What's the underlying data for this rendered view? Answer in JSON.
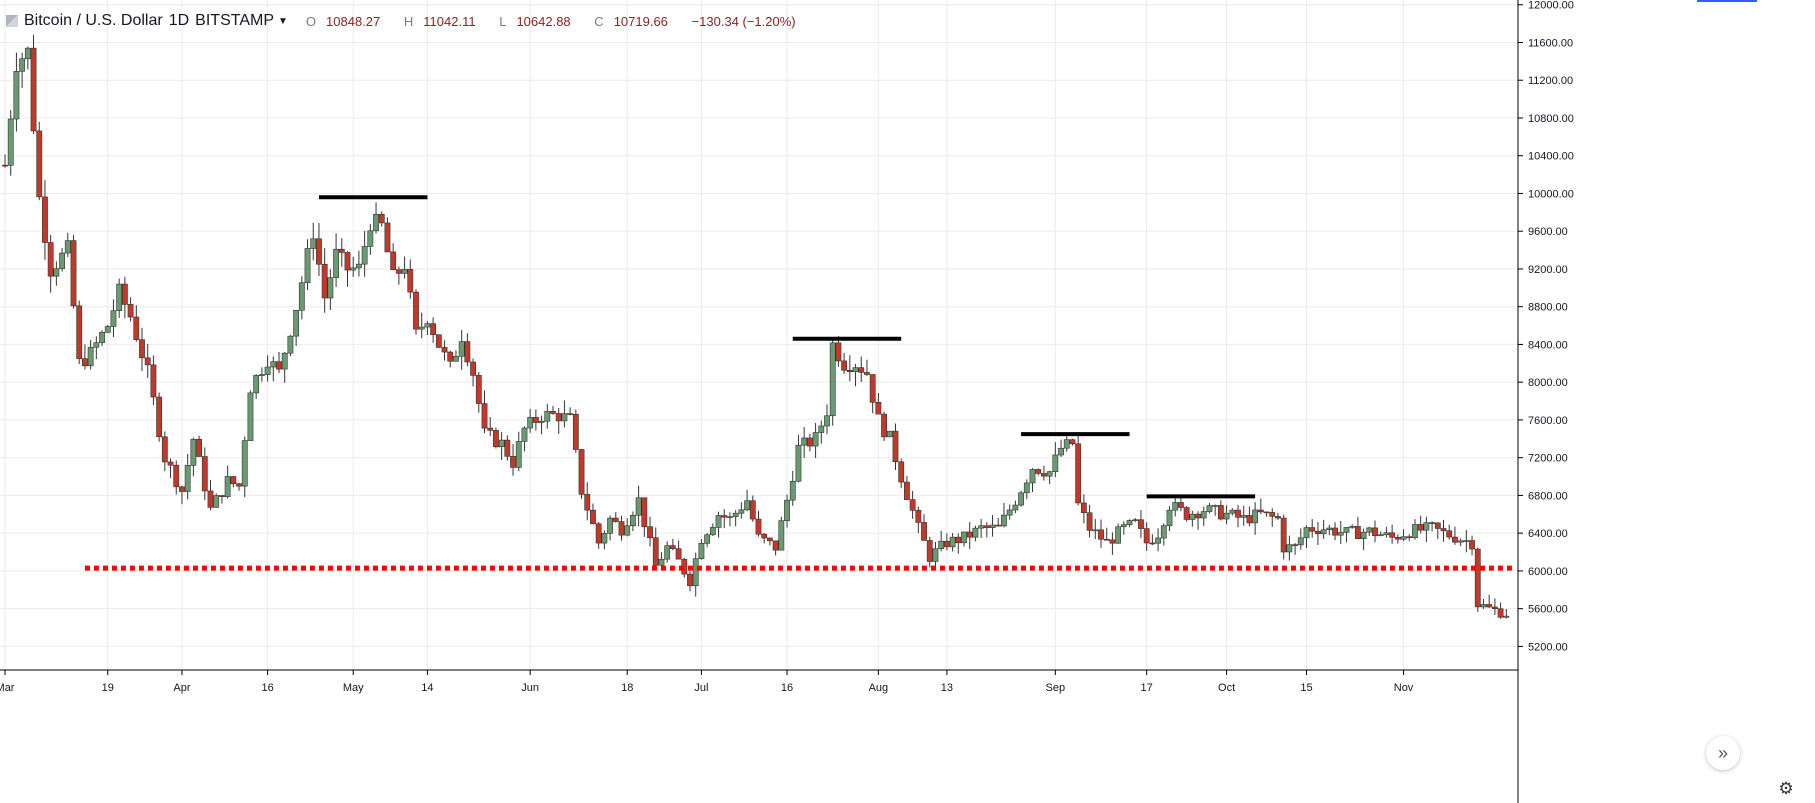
{
  "header": {
    "symbol": "Bitcoin / U.S. Dollar",
    "interval": "1D",
    "exchange": "BITSTAMP",
    "ohlc": {
      "o_label": "O",
      "o": "10848.27",
      "h_label": "H",
      "h": "11042.11",
      "l_label": "L",
      "l": "10642.88",
      "c_label": "C",
      "c": "10719.66",
      "change": "−130.34 (−1.20%)"
    }
  },
  "colors": {
    "up_body": "#6a9a72",
    "down_body": "#c0392b",
    "wick": "#333333",
    "support_line": "#ff0000",
    "resistance_line": "#000000",
    "grid": "#ebebeb",
    "axis_text": "#131722"
  },
  "icons": {
    "nav": "double-chevron-right-icon",
    "settings": "gear-icon",
    "symbol": "exchange-logo-icon"
  },
  "chart_data": {
    "type": "candlestick",
    "title": "",
    "xlabel": "",
    "ylabel": "",
    "ylim": [
      4950,
      12050
    ],
    "xlim": [
      "2018-03-01",
      "2018-11-20"
    ],
    "y_ticks": [
      5200,
      5600,
      6000,
      6400,
      6800,
      7200,
      7600,
      8000,
      8400,
      8800,
      9200,
      9600,
      10000,
      10400,
      10800,
      11200,
      11600,
      12000
    ],
    "y_tick_labels": [
      "5200.00",
      "5600.00",
      "6000.00",
      "6400.00",
      "6800.00",
      "7200.00",
      "7600.00",
      "8000.00",
      "8400.00",
      "8800.00",
      "9200.00",
      "9600.00",
      "10000.00",
      "10400.00",
      "10800.00",
      "11200.00",
      "11600.00",
      "12000.00"
    ],
    "x_ticks": [
      {
        "label": "Mar",
        "date": "2018-03-01"
      },
      {
        "label": "19",
        "date": "2018-03-19"
      },
      {
        "label": "Apr",
        "date": "2018-04-01"
      },
      {
        "label": "16",
        "date": "2018-04-16"
      },
      {
        "label": "May",
        "date": "2018-05-01"
      },
      {
        "label": "14",
        "date": "2018-05-14"
      },
      {
        "label": "Jun",
        "date": "2018-06-01"
      },
      {
        "label": "18",
        "date": "2018-06-18"
      },
      {
        "label": "Jul",
        "date": "2018-07-01"
      },
      {
        "label": "16",
        "date": "2018-07-16"
      },
      {
        "label": "Aug",
        "date": "2018-08-01"
      },
      {
        "label": "13",
        "date": "2018-08-13"
      },
      {
        "label": "Sep",
        "date": "2018-09-01"
      },
      {
        "label": "17",
        "date": "2018-09-17"
      },
      {
        "label": "Oct",
        "date": "2018-10-01"
      },
      {
        "label": "15",
        "date": "2018-10-15"
      },
      {
        "label": "Nov",
        "date": "2018-11-01"
      }
    ],
    "grid": true,
    "keypoints": [
      [
        "2018-03-01",
        10300
      ],
      [
        "2018-03-03",
        11400
      ],
      [
        "2018-03-05",
        11500
      ],
      [
        "2018-03-07",
        9950
      ],
      [
        "2018-03-09",
        9200
      ],
      [
        "2018-03-12",
        9400
      ],
      [
        "2018-03-14",
        8200
      ],
      [
        "2018-03-16",
        8300
      ],
      [
        "2018-03-19",
        8600
      ],
      [
        "2018-03-21",
        8950
      ],
      [
        "2018-03-23",
        8700
      ],
      [
        "2018-03-26",
        8100
      ],
      [
        "2018-03-29",
        7200
      ],
      [
        "2018-04-01",
        6850
      ],
      [
        "2018-04-03",
        7400
      ],
      [
        "2018-04-06",
        6650
      ],
      [
        "2018-04-09",
        6950
      ],
      [
        "2018-04-11",
        6900
      ],
      [
        "2018-04-13",
        7950
      ],
      [
        "2018-04-16",
        8250
      ],
      [
        "2018-04-18",
        8100
      ],
      [
        "2018-04-21",
        8800
      ],
      [
        "2018-04-24",
        9600
      ],
      [
        "2018-04-26",
        8900
      ],
      [
        "2018-04-28",
        9350
      ],
      [
        "2018-04-30",
        9200
      ],
      [
        "2018-05-02",
        9200
      ],
      [
        "2018-05-04",
        9700
      ],
      [
        "2018-05-06",
        9650
      ],
      [
        "2018-05-08",
        9100
      ],
      [
        "2018-05-10",
        9250
      ],
      [
        "2018-05-12",
        8500
      ],
      [
        "2018-05-14",
        8700
      ],
      [
        "2018-05-16",
        8400
      ],
      [
        "2018-05-18",
        8150
      ],
      [
        "2018-05-20",
        8500
      ],
      [
        "2018-05-22",
        8100
      ],
      [
        "2018-05-24",
        7450
      ],
      [
        "2018-05-27",
        7350
      ],
      [
        "2018-05-29",
        7150
      ],
      [
        "2018-05-31",
        7500
      ],
      [
        "2018-06-03",
        7650
      ],
      [
        "2018-06-06",
        7650
      ],
      [
        "2018-06-08",
        7600
      ],
      [
        "2018-06-10",
        6850
      ],
      [
        "2018-06-13",
        6300
      ],
      [
        "2018-06-15",
        6550
      ],
      [
        "2018-06-17",
        6450
      ],
      [
        "2018-06-20",
        6750
      ],
      [
        "2018-06-23",
        6050
      ],
      [
        "2018-06-25",
        6250
      ],
      [
        "2018-06-27",
        6100
      ],
      [
        "2018-06-29",
        5900
      ],
      [
        "2018-07-01",
        6350
      ],
      [
        "2018-07-04",
        6600
      ],
      [
        "2018-07-06",
        6550
      ],
      [
        "2018-07-09",
        6750
      ],
      [
        "2018-07-11",
        6350
      ],
      [
        "2018-07-14",
        6250
      ],
      [
        "2018-07-16",
        6750
      ],
      [
        "2018-07-18",
        7300
      ],
      [
        "2018-07-21",
        7400
      ],
      [
        "2018-07-23",
        7700
      ],
      [
        "2018-07-24",
        8400
      ],
      [
        "2018-07-26",
        8200
      ],
      [
        "2018-07-28",
        8200
      ],
      [
        "2018-07-30",
        8100
      ],
      [
        "2018-08-01",
        7600
      ],
      [
        "2018-08-03",
        7400
      ],
      [
        "2018-08-05",
        7000
      ],
      [
        "2018-08-08",
        6450
      ],
      [
        "2018-08-10",
        6150
      ],
      [
        "2018-08-13",
        6300
      ],
      [
        "2018-08-16",
        6350
      ],
      [
        "2018-08-19",
        6450
      ],
      [
        "2018-08-22",
        6450
      ],
      [
        "2018-08-25",
        6750
      ],
      [
        "2018-08-28",
        7100
      ],
      [
        "2018-08-31",
        7050
      ],
      [
        "2018-09-02",
        7300
      ],
      [
        "2018-09-04",
        7350
      ],
      [
        "2018-09-05",
        6700
      ],
      [
        "2018-09-07",
        6450
      ],
      [
        "2018-09-10",
        6300
      ],
      [
        "2018-09-13",
        6450
      ],
      [
        "2018-09-15",
        6500
      ],
      [
        "2018-09-17",
        6300
      ],
      [
        "2018-09-19",
        6400
      ],
      [
        "2018-09-21",
        6700
      ],
      [
        "2018-09-24",
        6600
      ],
      [
        "2018-09-27",
        6650
      ],
      [
        "2018-10-01",
        6600
      ],
      [
        "2018-10-04",
        6550
      ],
      [
        "2018-10-07",
        6600
      ],
      [
        "2018-10-10",
        6550
      ],
      [
        "2018-10-11",
        6250
      ],
      [
        "2018-10-13",
        6250
      ],
      [
        "2018-10-15",
        6450
      ],
      [
        "2018-10-18",
        6450
      ],
      [
        "2018-10-22",
        6400
      ],
      [
        "2018-10-26",
        6420
      ],
      [
        "2018-10-30",
        6350
      ],
      [
        "2018-11-02",
        6420
      ],
      [
        "2018-11-06",
        6450
      ],
      [
        "2018-11-08",
        6400
      ],
      [
        "2018-11-13",
        6300
      ],
      [
        "2018-11-14",
        5650
      ],
      [
        "2018-11-16",
        5600
      ],
      [
        "2018-11-19",
        5550
      ]
    ],
    "annotations": [
      {
        "kind": "support",
        "style": "dotted",
        "color": "#ff0000",
        "y": 6030,
        "x_start": "2018-03-15",
        "x_end": "2018-11-20"
      },
      {
        "kind": "resistance",
        "style": "solid",
        "color": "#000000",
        "y": 9960,
        "x_start": "2018-04-25",
        "x_end": "2018-05-14"
      },
      {
        "kind": "resistance",
        "style": "solid",
        "color": "#000000",
        "y": 8460,
        "x_start": "2018-07-17",
        "x_end": "2018-08-05"
      },
      {
        "kind": "resistance",
        "style": "solid",
        "color": "#000000",
        "y": 7450,
        "x_start": "2018-08-26",
        "x_end": "2018-09-14"
      },
      {
        "kind": "resistance",
        "style": "solid",
        "color": "#000000",
        "y": 6790,
        "x_start": "2018-09-17",
        "x_end": "2018-10-06"
      }
    ]
  }
}
